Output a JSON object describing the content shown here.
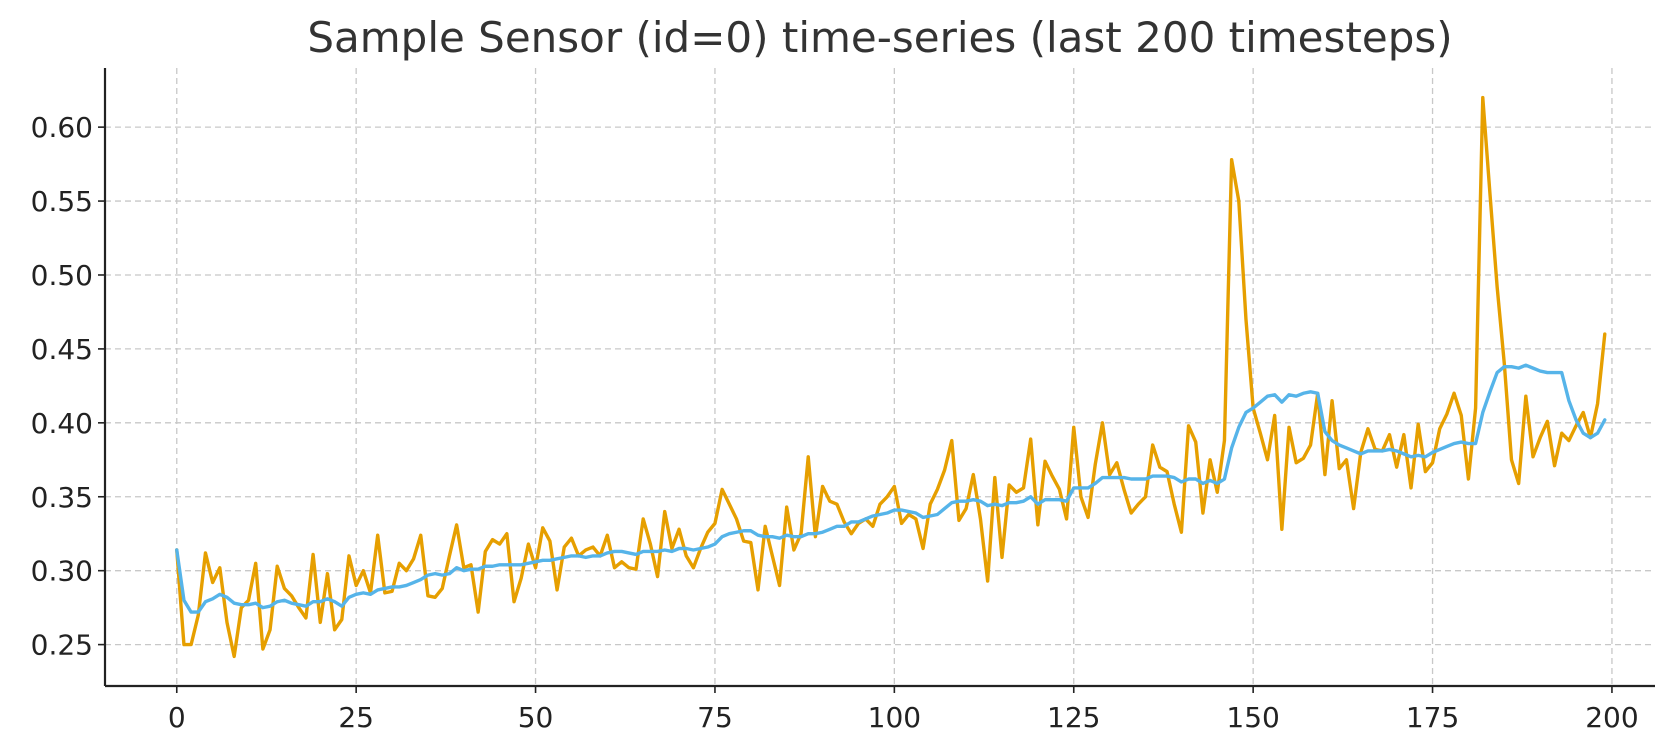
{
  "chart_data": {
    "type": "line",
    "title": "Sample Sensor (id=0) time-series (last 200 timesteps)",
    "xlabel": "",
    "ylabel": "",
    "xlim": [
      -10,
      206
    ],
    "ylim": [
      0.222,
      0.64
    ],
    "x_ticks": [
      0,
      25,
      50,
      75,
      100,
      125,
      150,
      175,
      200
    ],
    "x_tick_labels": [
      "0",
      "25",
      "50",
      "75",
      "100",
      "125",
      "150",
      "175",
      "200"
    ],
    "y_ticks": [
      0.25,
      0.3,
      0.35,
      0.4,
      0.45,
      0.5,
      0.55,
      0.6
    ],
    "y_tick_labels": [
      "0.25",
      "0.30",
      "0.35",
      "0.40",
      "0.45",
      "0.50",
      "0.55",
      "0.60"
    ],
    "grid": true,
    "series": [
      {
        "color": "#E69F00",
        "values": [
          0.314,
          0.25,
          0.25,
          0.27,
          0.312,
          0.292,
          0.302,
          0.265,
          0.242,
          0.275,
          0.28,
          0.305,
          0.247,
          0.26,
          0.303,
          0.288,
          0.283,
          0.275,
          0.268,
          0.311,
          0.265,
          0.298,
          0.26,
          0.267,
          0.31,
          0.29,
          0.3,
          0.285,
          0.324,
          0.285,
          0.286,
          0.305,
          0.3,
          0.308,
          0.324,
          0.283,
          0.282,
          0.288,
          0.31,
          0.331,
          0.302,
          0.304,
          0.272,
          0.313,
          0.321,
          0.318,
          0.325,
          0.279,
          0.295,
          0.318,
          0.302,
          0.329,
          0.32,
          0.287,
          0.316,
          0.322,
          0.31,
          0.314,
          0.316,
          0.31,
          0.324,
          0.302,
          0.306,
          0.302,
          0.301,
          0.335,
          0.318,
          0.296,
          0.34,
          0.315,
          0.328,
          0.31,
          0.302,
          0.315,
          0.326,
          0.332,
          0.355,
          0.345,
          0.335,
          0.32,
          0.319,
          0.287,
          0.33,
          0.31,
          0.29,
          0.343,
          0.314,
          0.325,
          0.377,
          0.323,
          0.357,
          0.347,
          0.345,
          0.333,
          0.325,
          0.332,
          0.335,
          0.33,
          0.345,
          0.35,
          0.357,
          0.332,
          0.338,
          0.335,
          0.315,
          0.345,
          0.355,
          0.368,
          0.388,
          0.334,
          0.342,
          0.365,
          0.335,
          0.293,
          0.363,
          0.309,
          0.358,
          0.353,
          0.356,
          0.389,
          0.331,
          0.374,
          0.364,
          0.355,
          0.335,
          0.397,
          0.35,
          0.336,
          0.372,
          0.4,
          0.365,
          0.373,
          0.355,
          0.339,
          0.345,
          0.35,
          0.385,
          0.37,
          0.367,
          0.345,
          0.326,
          0.398,
          0.387,
          0.339,
          0.375,
          0.353,
          0.388,
          0.578,
          0.55,
          0.47,
          0.41,
          0.393,
          0.375,
          0.405,
          0.328,
          0.397,
          0.373,
          0.376,
          0.385,
          0.42,
          0.365,
          0.415,
          0.369,
          0.375,
          0.342,
          0.38,
          0.396,
          0.382,
          0.381,
          0.392,
          0.37,
          0.392,
          0.356,
          0.399,
          0.367,
          0.373,
          0.396,
          0.406,
          0.42,
          0.405,
          0.362,
          0.41,
          0.62,
          0.555,
          0.492,
          0.44,
          0.375,
          0.359,
          0.418,
          0.377,
          0.39,
          0.401,
          0.371,
          0.393,
          0.388,
          0.398,
          0.407,
          0.39,
          0.413,
          0.46
        ]
      },
      {
        "color": "#56B4E9",
        "values": [
          0.314,
          0.28,
          0.272,
          0.272,
          0.279,
          0.281,
          0.284,
          0.282,
          0.278,
          0.277,
          0.277,
          0.278,
          0.275,
          0.276,
          0.279,
          0.28,
          0.278,
          0.277,
          0.276,
          0.279,
          0.279,
          0.281,
          0.279,
          0.276,
          0.282,
          0.284,
          0.285,
          0.284,
          0.287,
          0.288,
          0.289,
          0.289,
          0.29,
          0.292,
          0.294,
          0.297,
          0.298,
          0.297,
          0.298,
          0.302,
          0.3,
          0.301,
          0.301,
          0.303,
          0.303,
          0.304,
          0.304,
          0.304,
          0.304,
          0.305,
          0.306,
          0.307,
          0.307,
          0.308,
          0.309,
          0.31,
          0.31,
          0.309,
          0.31,
          0.31,
          0.312,
          0.313,
          0.313,
          0.312,
          0.311,
          0.313,
          0.313,
          0.313,
          0.314,
          0.313,
          0.315,
          0.315,
          0.314,
          0.315,
          0.316,
          0.318,
          0.323,
          0.325,
          0.326,
          0.327,
          0.327,
          0.324,
          0.323,
          0.323,
          0.322,
          0.324,
          0.323,
          0.323,
          0.325,
          0.325,
          0.326,
          0.328,
          0.33,
          0.33,
          0.333,
          0.333,
          0.335,
          0.337,
          0.338,
          0.339,
          0.341,
          0.341,
          0.34,
          0.339,
          0.336,
          0.337,
          0.338,
          0.342,
          0.346,
          0.347,
          0.347,
          0.348,
          0.347,
          0.344,
          0.345,
          0.344,
          0.346,
          0.346,
          0.347,
          0.35,
          0.345,
          0.348,
          0.348,
          0.348,
          0.347,
          0.356,
          0.356,
          0.356,
          0.359,
          0.363,
          0.363,
          0.363,
          0.363,
          0.362,
          0.362,
          0.362,
          0.364,
          0.364,
          0.364,
          0.363,
          0.36,
          0.362,
          0.362,
          0.359,
          0.361,
          0.359,
          0.362,
          0.383,
          0.397,
          0.407,
          0.41,
          0.414,
          0.418,
          0.419,
          0.414,
          0.419,
          0.418,
          0.42,
          0.421,
          0.42,
          0.394,
          0.388,
          0.385,
          0.383,
          0.381,
          0.379,
          0.381,
          0.381,
          0.381,
          0.382,
          0.381,
          0.379,
          0.377,
          0.378,
          0.377,
          0.38,
          0.382,
          0.384,
          0.386,
          0.387,
          0.386,
          0.386,
          0.407,
          0.421,
          0.434,
          0.438,
          0.438,
          0.437,
          0.439,
          0.437,
          0.435,
          0.434,
          0.434,
          0.434,
          0.415,
          0.402,
          0.393,
          0.39,
          0.393,
          0.402
        ]
      }
    ]
  }
}
